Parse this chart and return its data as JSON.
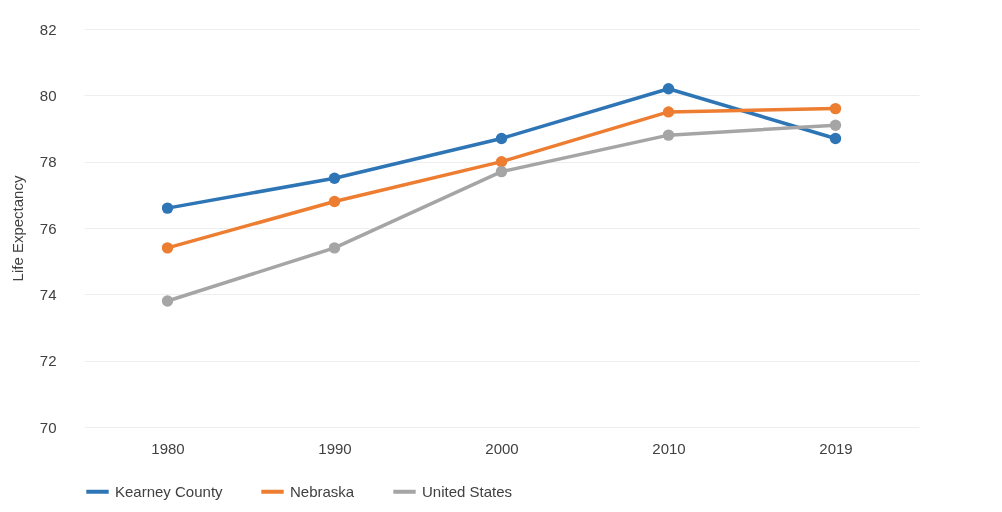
{
  "chart_data": {
    "type": "line",
    "ylabel": "Life Expectancy",
    "categories": [
      "1980",
      "1990",
      "2000",
      "2010",
      "2019"
    ],
    "series": [
      {
        "name": "Kearney County",
        "color": "#2e75b6",
        "values": [
          76.6,
          77.5,
          78.7,
          80.2,
          78.7
        ]
      },
      {
        "name": "Nebraska",
        "color": "#ed7d31",
        "values": [
          75.4,
          76.8,
          78.0,
          79.5,
          79.6
        ]
      },
      {
        "name": "United States",
        "color": "#a5a5a5",
        "values": [
          73.8,
          75.4,
          77.7,
          78.8,
          79.1
        ]
      }
    ],
    "ylim": [
      70,
      82
    ],
    "yticks": [
      70,
      72,
      74,
      76,
      78,
      80,
      82
    ],
    "grid": "y",
    "legend": "bottom",
    "marker": "circle",
    "line_style": "solid"
  }
}
